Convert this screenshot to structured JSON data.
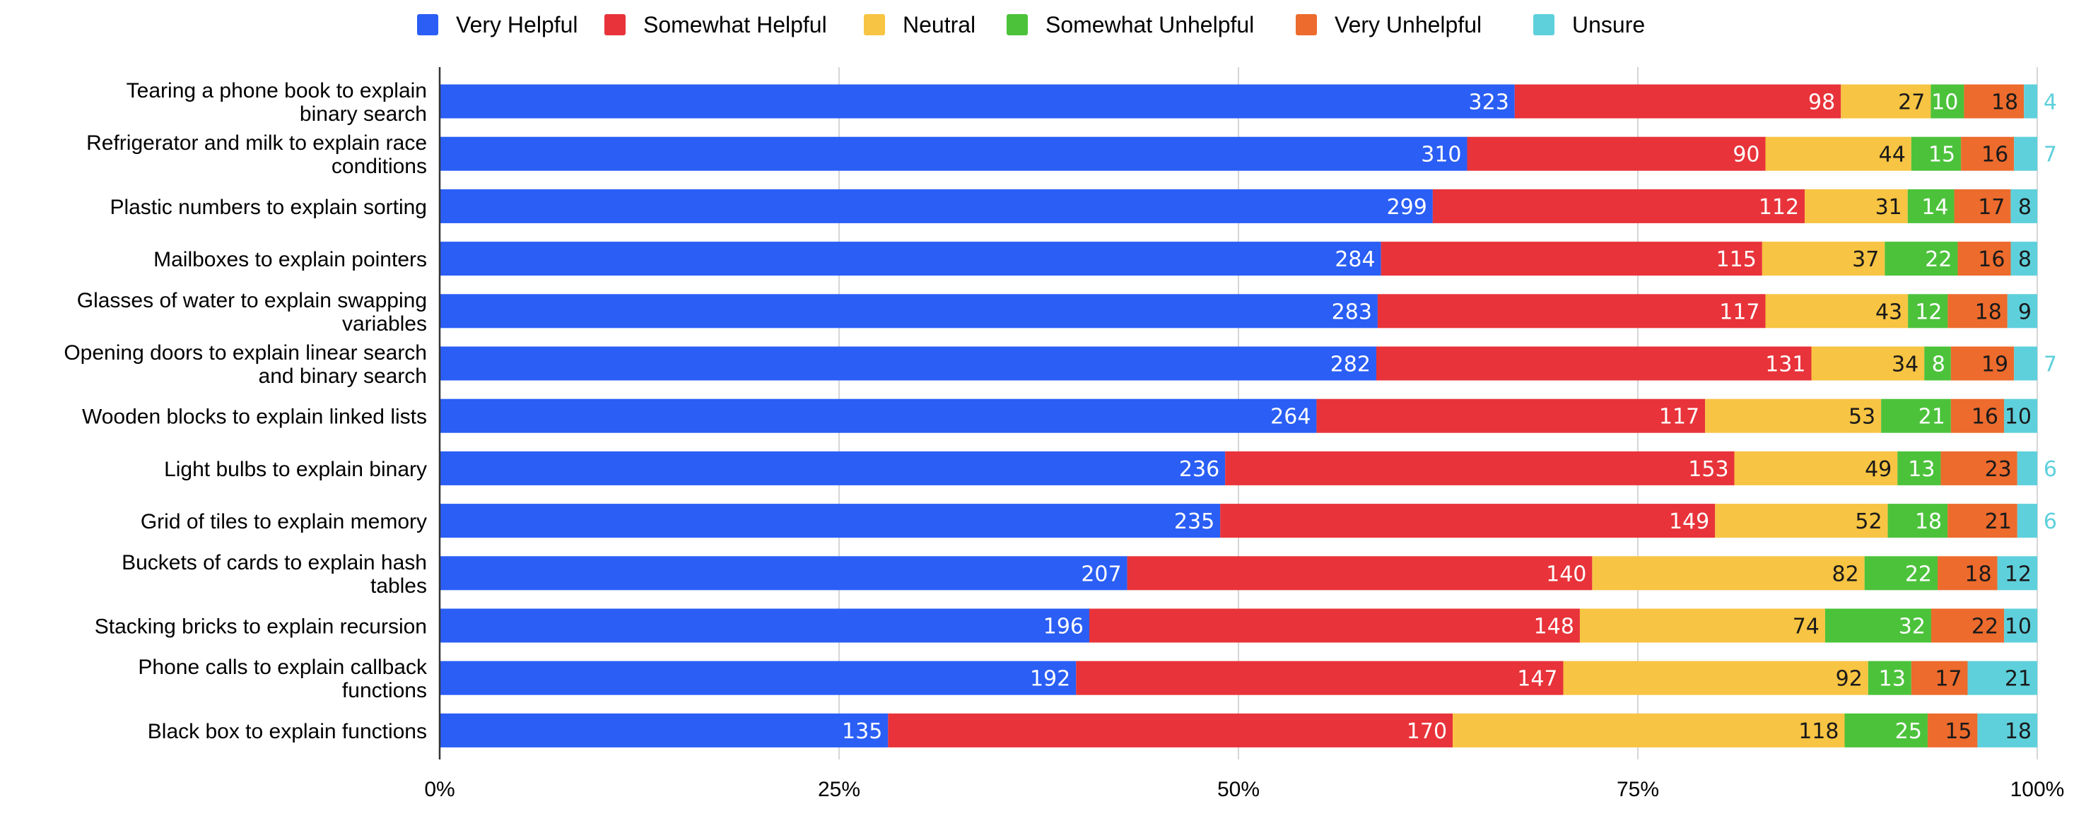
{
  "chart_data": {
    "type": "bar",
    "orientation": "horizontal",
    "stacked": "percent",
    "categories": [
      "Tearing a phone book to explain binary search",
      "Refrigerator and milk to explain race conditions",
      "Plastic numbers to explain sorting",
      "Mailboxes to explain pointers",
      "Glasses of water to explain swapping variables",
      "Opening doors to explain linear search and binary search",
      "Wooden blocks to explain linked lists",
      "Light bulbs to explain binary",
      "Grid of tiles to explain memory",
      "Buckets of cards to explain hash tables",
      "Stacking bricks to explain recursion",
      "Phone calls to explain callback functions",
      "Black box to explain functions"
    ],
    "category_lines": [
      [
        "Tearing a phone book to explain",
        "binary search"
      ],
      [
        "Refrigerator and milk to explain race",
        "conditions"
      ],
      [
        "Plastic numbers to explain sorting"
      ],
      [
        "Mailboxes to explain pointers"
      ],
      [
        "Glasses of water to explain swapping",
        "variables"
      ],
      [
        "Opening doors to explain linear search",
        "and binary search"
      ],
      [
        "Wooden blocks to explain linked lists"
      ],
      [
        "Light bulbs to explain binary"
      ],
      [
        "Grid of tiles to explain memory"
      ],
      [
        "Buckets of cards to explain hash",
        "tables"
      ],
      [
        "Stacking bricks to explain recursion"
      ],
      [
        "Phone calls to explain callback",
        "functions"
      ],
      [
        "Black box to explain functions"
      ]
    ],
    "series": [
      {
        "name": "Very Helpful",
        "color": "#2a5ef5",
        "label_color": "#ffffff",
        "values": [
          323,
          310,
          299,
          284,
          283,
          282,
          264,
          236,
          235,
          207,
          196,
          192,
          135
        ]
      },
      {
        "name": "Somewhat Helpful",
        "color": "#e8333a",
        "label_color": "#ffffff",
        "values": [
          98,
          90,
          112,
          115,
          117,
          131,
          117,
          153,
          149,
          140,
          148,
          147,
          170
        ]
      },
      {
        "name": "Neutral",
        "color": "#f7c443",
        "label_color": "#1a1a1a",
        "values": [
          27,
          44,
          31,
          37,
          43,
          34,
          53,
          49,
          52,
          82,
          74,
          92,
          118
        ]
      },
      {
        "name": "Somewhat Unhelpful",
        "color": "#4cc23b",
        "label_color": "#ffffff",
        "values": [
          10,
          15,
          14,
          22,
          12,
          8,
          21,
          13,
          18,
          22,
          32,
          13,
          25
        ]
      },
      {
        "name": "Very Unhelpful",
        "color": "#ec6b2d",
        "label_color": "#1a1a1a",
        "values": [
          18,
          16,
          17,
          16,
          18,
          19,
          16,
          23,
          21,
          18,
          22,
          17,
          15
        ]
      },
      {
        "name": "Unsure",
        "color": "#5ed0dc",
        "label_color": "#1a1a1a",
        "values": [
          4,
          7,
          8,
          8,
          9,
          7,
          10,
          6,
          6,
          12,
          10,
          21,
          18
        ]
      }
    ],
    "xlim": [
      0,
      100
    ],
    "x_ticks": [
      0,
      25,
      50,
      75,
      100
    ],
    "x_tick_labels": [
      "0%",
      "25%",
      "50%",
      "75%",
      "100%"
    ],
    "grid": true,
    "legend_position": "top-center"
  }
}
